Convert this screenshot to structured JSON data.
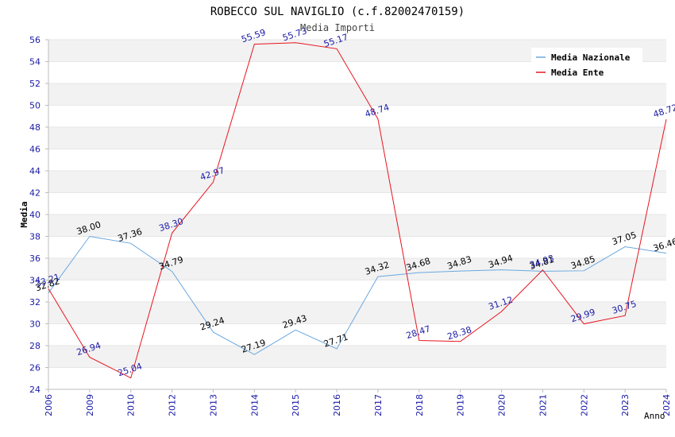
{
  "chart_data": {
    "type": "line",
    "title": "ROBECCO SUL NAVIGLIO (c.f.82002470159)",
    "subtitle": "Media Importi",
    "xlabel": "Anno",
    "ylabel": "Media",
    "ylim": [
      24,
      56
    ],
    "yticks": [
      24,
      26,
      28,
      30,
      32,
      34,
      36,
      38,
      40,
      42,
      44,
      46,
      48,
      50,
      52,
      54,
      56
    ],
    "categories": [
      "2006",
      "2009",
      "2010",
      "2012",
      "2013",
      "2014",
      "2015",
      "2016",
      "2017",
      "2018",
      "2019",
      "2020",
      "2021",
      "2022",
      "2023",
      "2024"
    ],
    "legend_position": "top-right",
    "grid": "horizontal-bands",
    "series": [
      {
        "name": "Media Nazionale",
        "color": "#6aa8e0",
        "label_color": "#000000",
        "values": [
          32.82,
          38.0,
          37.36,
          34.79,
          29.24,
          27.19,
          29.43,
          27.71,
          34.32,
          34.68,
          34.83,
          34.94,
          34.81,
          34.85,
          37.05,
          36.46
        ],
        "labels": [
          "32.82",
          "38.00",
          "37.36",
          "34.79",
          "29.24",
          "27.19",
          "29.43",
          "27.71",
          "34.32",
          "34.68",
          "34.83",
          "34.94",
          "34.81",
          "34.85",
          "37.05",
          "36.46"
        ]
      },
      {
        "name": "Media Ente",
        "color": "#e8141e",
        "label_color": "#1a1aa6",
        "values": [
          33.21,
          26.94,
          25.04,
          38.3,
          42.97,
          55.59,
          55.73,
          55.17,
          48.74,
          28.47,
          28.38,
          31.12,
          34.93,
          29.99,
          30.75,
          48.72
        ],
        "labels": [
          "33.21",
          "26.94",
          "25.04",
          "38.30",
          "42.97",
          "55.59",
          "55.73",
          "55.17",
          "48.74",
          "28.47",
          "28.38",
          "31.12",
          "34.93",
          "29.99",
          "30.75",
          "48.72"
        ]
      }
    ]
  }
}
